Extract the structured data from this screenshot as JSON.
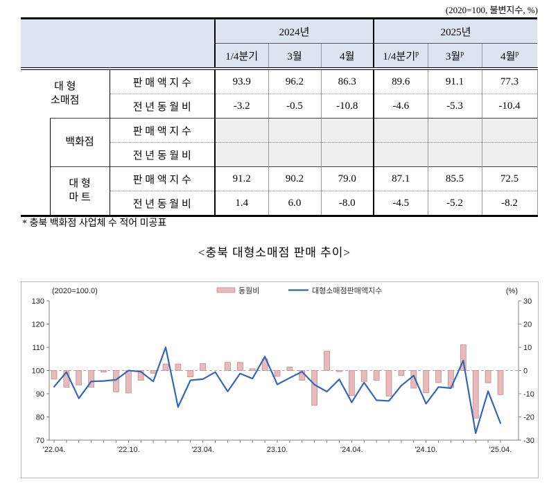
{
  "meta": {
    "unit_note": "(2020=100, 불변지수, %)"
  },
  "table": {
    "header": {
      "y2024": "2024년",
      "y2025": "2025년",
      "cols": [
        {
          "t": "1/4분기",
          "s": ""
        },
        {
          "t": "3월",
          "s": ""
        },
        {
          "t": "4월",
          "s": ""
        },
        {
          "t": "1/4분기",
          "s": "p"
        },
        {
          "t": "3월",
          "s": "p"
        },
        {
          "t": "4월",
          "s": "p"
        }
      ]
    },
    "groups": [
      {
        "l1": "대  형",
        "l2": "소매점"
      },
      {
        "l1": "백화점",
        "l2": ""
      },
      {
        "l1": "대 형",
        "l2": "마 트"
      }
    ],
    "metric_sales": "판 매 액 지 수",
    "metric_yoy": "전 년 동 월 비",
    "rows": [
      {
        "values": [
          "93.9",
          "96.2",
          "86.3",
          "89.6",
          "91.1",
          "77.3"
        ]
      },
      {
        "values": [
          "-3.2",
          "-0.5",
          "-10.8",
          "-4.6",
          "-5.3",
          "-10.4"
        ]
      },
      {
        "values": [
          "",
          "",
          "",
          "",
          "",
          ""
        ]
      },
      {
        "values": [
          "",
          "",
          "",
          "",
          "",
          ""
        ]
      },
      {
        "values": [
          "91.2",
          "90.2",
          "79.0",
          "87.1",
          "85.5",
          "72.5"
        ]
      },
      {
        "values": [
          "1.4",
          "6.0",
          "-8.0",
          "-4.5",
          "-5.2",
          "-8.2"
        ]
      }
    ]
  },
  "footnote": "* 충북 백화점 사업체 수 적어 미공표",
  "chart_title": "<충북 대형소매점 판매 추이>",
  "chart_data": {
    "type": "combo-bar-line",
    "title": "충북 대형소매점 판매 추이",
    "unit_note_left": "(2020=100.0)",
    "unit_note_right": "(%)",
    "legend": [
      {
        "label": "동월비",
        "mark": "bar",
        "color": "#e8babe"
      },
      {
        "label": "대형소매점판매액지수",
        "mark": "line",
        "color": "#3866ae"
      }
    ],
    "left_axis": {
      "min": 70,
      "max": 130,
      "step": 10
    },
    "right_axis": {
      "min": -30,
      "max": 30,
      "step": 10
    },
    "x_tick_labels": [
      "'22.04.",
      "'22.10.",
      "'23.04.",
      "23.10.",
      "'24.04.",
      "'24.10.",
      "'25.04."
    ],
    "months": [
      "2022-04",
      "2022-05",
      "2022-06",
      "2022-07",
      "2022-08",
      "2022-09",
      "2022-10",
      "2022-11",
      "2022-12",
      "2023-01",
      "2023-02",
      "2023-03",
      "2023-04",
      "2023-05",
      "2023-06",
      "2023-07",
      "2023-08",
      "2023-09",
      "2023-10",
      "2023-11",
      "2023-12",
      "2024-01",
      "2024-02",
      "2024-03",
      "2024-04",
      "2024-05",
      "2024-06",
      "2024-07",
      "2024-08",
      "2024-09",
      "2024-10",
      "2024-11",
      "2024-12",
      "2025-01",
      "2025-02",
      "2025-03",
      "2025-04"
    ],
    "series": [
      {
        "name": "동월비",
        "type": "bar",
        "axis": "right",
        "values": [
          -3.7,
          -7.2,
          -6.2,
          -7.2,
          -0.7,
          -9.2,
          -9.7,
          -4.2,
          -1.2,
          2.8,
          2.8,
          -2.7,
          3.0,
          0.0,
          3.5,
          3.5,
          0.8,
          5.0,
          -2.5,
          1.5,
          -4.2,
          -15.0,
          8.3,
          -0.5,
          -10.8,
          -4.7,
          -4.2,
          -11.0,
          -2.2,
          -7.6,
          -9.6,
          -5.2,
          -7.4,
          11.1,
          -20.5,
          -5.3,
          -10.4
        ]
      },
      {
        "name": "대형소매점판매액지수",
        "type": "line",
        "axis": "left",
        "values": [
          93.0,
          99.3,
          88.0,
          95.3,
          95.5,
          96.0,
          100.0,
          99.5,
          95.3,
          110.0,
          84.3,
          95.8,
          96.3,
          99.3,
          91.0,
          98.7,
          96.5,
          106.0,
          94.0,
          96.8,
          99.5,
          93.9,
          90.9,
          96.2,
          86.3,
          94.8,
          87.2,
          86.9,
          93.5,
          97.8,
          85.7,
          92.9,
          92.4,
          104.3,
          73.0,
          91.1,
          77.3
        ]
      }
    ],
    "grid": "dashed zero line only",
    "legend_position": "top-center"
  },
  "colors": {
    "bar_fill": "#e8babe",
    "bar_stroke": "#bb8f94",
    "line": "#3866ae",
    "header_bg": "#dce3f1",
    "shade_bg": "#efefef",
    "axis": "#808080"
  }
}
